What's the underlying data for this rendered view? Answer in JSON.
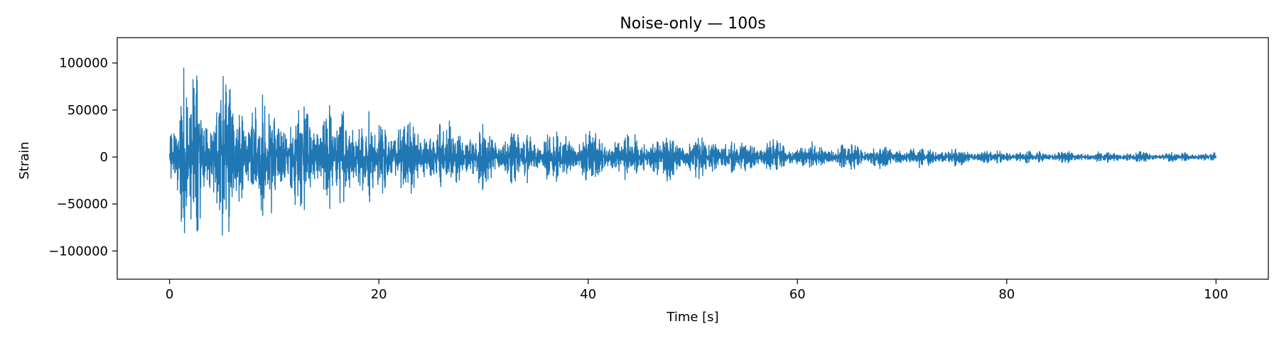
{
  "chart_data": {
    "type": "line",
    "title": "Noise-only — 100s",
    "xlabel": "Time [s]",
    "ylabel": "Strain",
    "xlim": [
      -5,
      105
    ],
    "ylim": [
      -130000,
      127000
    ],
    "x_ticks": [
      0,
      20,
      40,
      60,
      80,
      100
    ],
    "x_tick_labels": [
      "0",
      "20",
      "40",
      "60",
      "80",
      "100"
    ],
    "y_ticks": [
      -100000,
      -50000,
      0,
      50000,
      100000
    ],
    "y_tick_labels": [
      "−100000",
      "−50000",
      "0",
      "50000",
      "100000"
    ],
    "grid": false,
    "legend": "none",
    "series_color": "#1f77b4",
    "signal": {
      "x_start": 0,
      "x_end": 100,
      "envelope_peaks": [
        {
          "x": 0.5,
          "amp": 60000
        },
        {
          "x": 1.0,
          "amp": 100000
        },
        {
          "x": 1.7,
          "amp": 115000
        },
        {
          "x": 3.0,
          "amp": 90000
        },
        {
          "x": 5.5,
          "amp": 90000
        },
        {
          "x": 8.0,
          "amp": 70000
        },
        {
          "x": 11.0,
          "amp": 68000
        },
        {
          "x": 15.7,
          "amp": 64000
        },
        {
          "x": 20.0,
          "amp": 50000
        },
        {
          "x": 30.0,
          "amp": 35000
        },
        {
          "x": 40.0,
          "amp": 28000
        },
        {
          "x": 48.0,
          "amp": 26000
        },
        {
          "x": 60.0,
          "amp": 17000
        },
        {
          "x": 70.0,
          "amp": 13000
        },
        {
          "x": 80.0,
          "amp": 7000
        },
        {
          "x": 90.0,
          "amp": 6000
        },
        {
          "x": 100.0,
          "amp": 5000
        }
      ]
    }
  }
}
